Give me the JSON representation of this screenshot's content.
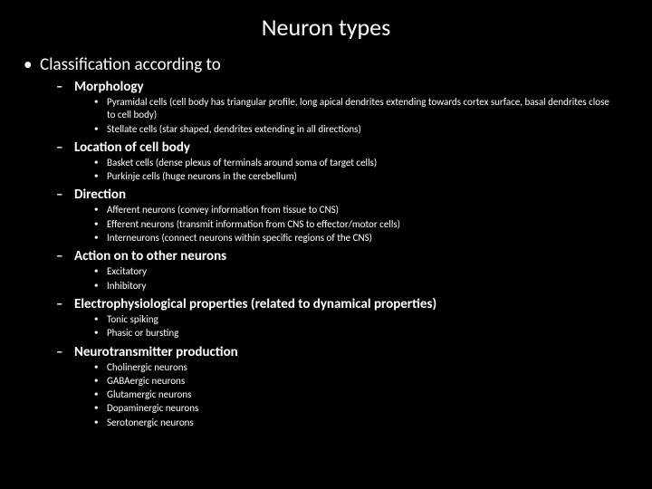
{
  "colors": {
    "background": "#000000",
    "text": "#ffffff"
  },
  "typography": {
    "title_fontsize": 26,
    "l1_fontsize": 19,
    "l2_fontsize": 15,
    "l3_fontsize": 11,
    "font_family": "Calibri"
  },
  "title": "Neuron types",
  "l1_label": "Classification according to",
  "sections": {
    "s0": {
      "label": "Morphology",
      "items": {
        "i0": "Pyramidal cells (cell body has triangular profile, long apical dendrites extending towards cortex surface, basal dendrites close to cell body)",
        "i1": "Stellate cells (star shaped, dendrites extending in all directions)"
      }
    },
    "s1": {
      "label": "Location of cell body",
      "items": {
        "i0": "Basket cells (dense plexus of terminals around soma of target cells)",
        "i1": "Purkinje cells (huge neurons in the cerebellum)"
      }
    },
    "s2": {
      "label": "Direction",
      "items": {
        "i0": "Afferent neurons (convey information from tissue to CNS)",
        "i1": "Efferent neurons (transmit information from CNS to effector/motor cells)",
        "i2": "Interneurons (connect neurons within specific regions of the CNS)"
      }
    },
    "s3": {
      "label": "Action on to other neurons",
      "items": {
        "i0": "Excitatory",
        "i1": "Inhibitory"
      }
    },
    "s4": {
      "label": "Electrophysiological properties (related to dynamical properties)",
      "items": {
        "i0": "Tonic spiking",
        "i1": "Phasic or bursting"
      }
    },
    "s5": {
      "label": "Neurotransmitter production",
      "items": {
        "i0": "Cholinergic neurons",
        "i1": "GABAergic neurons",
        "i2": "Glutamergic neurons",
        "i3": "Dopaminergic neurons",
        "i4": "Serotonergic neurons"
      }
    }
  }
}
